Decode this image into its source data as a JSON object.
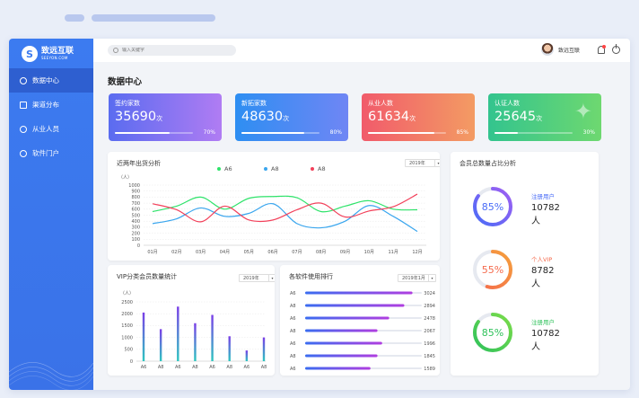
{
  "brand": {
    "name": "致远互联",
    "sub": "SEEYON.COM"
  },
  "sidebar": {
    "items": [
      {
        "label": "数据中心",
        "icon": "dashboard-icon",
        "active": true
      },
      {
        "label": "渠道分布",
        "icon": "home-icon",
        "active": false
      },
      {
        "label": "从业人员",
        "icon": "people-icon",
        "active": false
      },
      {
        "label": "软件门户",
        "icon": "person-icon",
        "active": false
      }
    ]
  },
  "header": {
    "search_placeholder": "输入关键字",
    "user_name": "致远互联"
  },
  "page_title": "数据中心",
  "stats": [
    {
      "label": "签约家数",
      "value": "35690",
      "unit": "次",
      "pct_text": "70%",
      "pct": 0.7,
      "gradient": [
        "#5a6cf0",
        "#b07cf3"
      ]
    },
    {
      "label": "新拓家数",
      "value": "48630",
      "unit": "次",
      "pct_text": "80%",
      "pct": 0.8,
      "gradient": [
        "#2e8ef2",
        "#6f86f4"
      ]
    },
    {
      "label": "从业人数",
      "value": "61634",
      "unit": "次",
      "pct_text": "85%",
      "pct": 0.85,
      "gradient": [
        "#f15b6b",
        "#f39b63"
      ]
    },
    {
      "label": "认证人数",
      "value": "25645",
      "unit": "次",
      "pct_text": "30%",
      "pct": 0.3,
      "gradient": [
        "#33c48e",
        "#6ed870"
      ]
    }
  ],
  "line_panel": {
    "title": "近两年出货分析",
    "dropdown": "2019年",
    "ylabel": "（人）"
  },
  "vip_panel": {
    "title": "VIP分类会员数量统计",
    "dropdown": "2019年",
    "ylabel": "（人）"
  },
  "rank_panel": {
    "title": "各软件使用排行",
    "dropdown": "2019年1月",
    "items": [
      {
        "label": "A6",
        "value": 3024,
        "ratio": 0.92
      },
      {
        "label": "A8",
        "value": 2894,
        "ratio": 0.85
      },
      {
        "label": "A6",
        "value": 2478,
        "ratio": 0.72
      },
      {
        "label": "A8",
        "value": 2067,
        "ratio": 0.62
      },
      {
        "label": "A6",
        "value": 1996,
        "ratio": 0.66
      },
      {
        "label": "A8",
        "value": 1845,
        "ratio": 0.62
      },
      {
        "label": "A6",
        "value": 1589,
        "ratio": 0.56
      }
    ]
  },
  "member_panel": {
    "title": "会员总数量占比分析",
    "rings": [
      {
        "pct_text": "85%",
        "pct": 0.85,
        "label": "注册用户",
        "value": "10782人",
        "color": "#4a6cf7",
        "color2": "#a05ef2"
      },
      {
        "pct_text": "55%",
        "pct": 0.55,
        "label": "个人VIP",
        "value": "8782人",
        "color": "#f56a4c",
        "color2": "#f5a03c"
      },
      {
        "pct_text": "85%",
        "pct": 0.85,
        "label": "注册用户",
        "value": "10782人",
        "color": "#2fc25b",
        "color2": "#7bdc4a"
      }
    ]
  },
  "chart_data": [
    {
      "type": "line",
      "title": "近两年出货分析",
      "ylabel": "（人）",
      "ylim": [
        0,
        1000
      ],
      "yticks": [
        0,
        100,
        200,
        300,
        400,
        500,
        600,
        700,
        800,
        900,
        1000
      ],
      "x": [
        "01月",
        "02月",
        "03月",
        "04月",
        "05月",
        "06月",
        "07月",
        "08月",
        "09月",
        "10月",
        "11月",
        "12月"
      ],
      "series": [
        {
          "name": "A6",
          "color": "#2ee36a",
          "values": [
            560,
            650,
            800,
            600,
            780,
            810,
            790,
            560,
            650,
            740,
            600,
            590
          ]
        },
        {
          "name": "A8",
          "color": "#3aa6ee",
          "values": [
            360,
            440,
            620,
            480,
            530,
            690,
            360,
            290,
            400,
            660,
            480,
            230
          ]
        },
        {
          "name": "A8",
          "color": "#f2405a",
          "values": [
            690,
            590,
            390,
            650,
            420,
            420,
            590,
            700,
            470,
            570,
            640,
            850
          ]
        }
      ],
      "legend": "top-center",
      "grid": true
    },
    {
      "type": "bar",
      "title": "VIP分类会员数量统计",
      "ylabel": "（人）",
      "ylim": [
        0,
        2500
      ],
      "yticks": [
        0,
        500,
        1000,
        1500,
        2000,
        2500
      ],
      "categories": [
        "A6",
        "A8",
        "A6",
        "A8",
        "A6",
        "A8",
        "A6",
        "A8"
      ],
      "values": [
        2050,
        1350,
        2300,
        1600,
        1950,
        1050,
        450,
        1000
      ],
      "grid": true
    }
  ]
}
